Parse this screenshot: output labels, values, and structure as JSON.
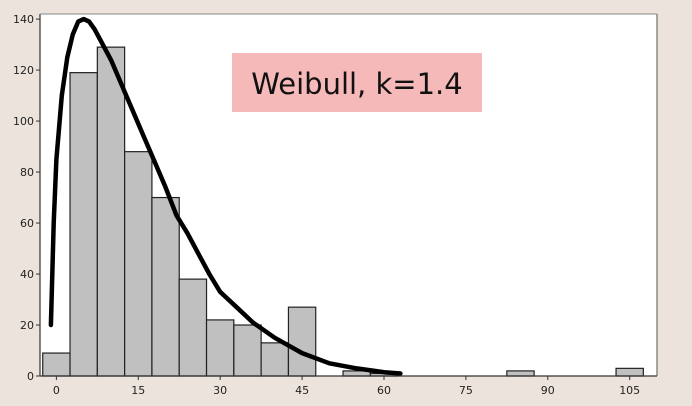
{
  "chart_data": {
    "type": "bar",
    "title": "",
    "xlabel": "",
    "ylabel": "",
    "xlim": [
      -3,
      110
    ],
    "ylim": [
      0,
      142
    ],
    "x_ticks": [
      0,
      15,
      30,
      45,
      60,
      75,
      90,
      105
    ],
    "y_ticks": [
      0,
      20,
      40,
      60,
      80,
      100,
      120,
      140
    ],
    "bin_width": 5,
    "bins": [
      {
        "start": -2.5,
        "value": 9
      },
      {
        "start": 2.5,
        "value": 119
      },
      {
        "start": 7.5,
        "value": 129
      },
      {
        "start": 12.5,
        "value": 88
      },
      {
        "start": 17.5,
        "value": 70
      },
      {
        "start": 22.5,
        "value": 38
      },
      {
        "start": 27.5,
        "value": 22
      },
      {
        "start": 32.5,
        "value": 20
      },
      {
        "start": 37.5,
        "value": 13
      },
      {
        "start": 42.5,
        "value": 27
      },
      {
        "start": 52.5,
        "value": 2
      },
      {
        "start": 57.5,
        "value": 1
      },
      {
        "start": 82.5,
        "value": 2
      },
      {
        "start": 102.5,
        "value": 3
      }
    ],
    "fit_curve": {
      "distribution": "Weibull",
      "k": 1.4,
      "points": [
        [
          -1,
          20
        ],
        [
          -0.5,
          60
        ],
        [
          0,
          85
        ],
        [
          1,
          110
        ],
        [
          2,
          125
        ],
        [
          3,
          134
        ],
        [
          4,
          139
        ],
        [
          5,
          140
        ],
        [
          6,
          139
        ],
        [
          7,
          136
        ],
        [
          8,
          132
        ],
        [
          10,
          124
        ],
        [
          12,
          114
        ],
        [
          14,
          104
        ],
        [
          16,
          94
        ],
        [
          18,
          84
        ],
        [
          20,
          74
        ],
        [
          22,
          63
        ],
        [
          24,
          56
        ],
        [
          26,
          48
        ],
        [
          28,
          40
        ],
        [
          30,
          33
        ],
        [
          33,
          27
        ],
        [
          36,
          21
        ],
        [
          40,
          15
        ],
        [
          45,
          9
        ],
        [
          50,
          5
        ],
        [
          55,
          3
        ],
        [
          60,
          1.5
        ],
        [
          63,
          1
        ]
      ]
    },
    "annotation": "Weibull, k=1.4",
    "grid": false,
    "legend": "none"
  }
}
